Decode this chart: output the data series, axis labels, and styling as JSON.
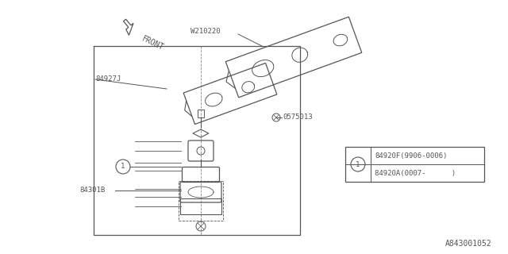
{
  "background_color": "#ffffff",
  "line_color": "#555555",
  "text_color": "#555555",
  "watermark": "A843001052",
  "label_W210220": "W210220",
  "label_84927J": "84927J",
  "label_0575013": "0575013",
  "label_84301B": "84301B",
  "label_front": "FRONT",
  "legend_row1": "84920F(9906-0006)",
  "legend_row2": "84920A(0007-      )"
}
